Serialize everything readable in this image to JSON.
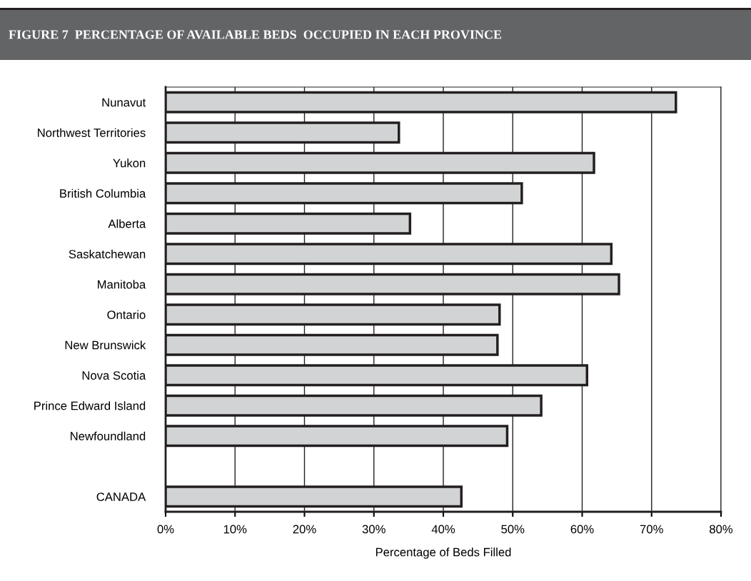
{
  "chart_data": {
    "type": "bar",
    "orientation": "horizontal",
    "title": "FIGURE 7  PERCENTAGE OF AVAILABLE BEDS  OCCUPIED IN EACH PROVINCE",
    "xlabel": "Percentage of Beds Filled",
    "categories": [
      "Nunavut",
      "Northwest Territories",
      "Yukon",
      "British Columbia",
      "Alberta",
      "Saskatchewan",
      "Manitoba",
      "Ontario",
      "New Brunswick",
      "Nova Scotia",
      "Prince Edward Island",
      "Newfoundland",
      null,
      "CANADA"
    ],
    "values": [
      73.5,
      33.6,
      61.7,
      51.3,
      35.2,
      64.2,
      65.3,
      48.1,
      47.8,
      60.7,
      54.1,
      49.2,
      null,
      42.6
    ],
    "color": "#d1d3d4",
    "xlim": [
      0,
      80
    ],
    "xticks": [
      {
        "value": 0,
        "label": "0%"
      },
      {
        "value": 10,
        "label": "10%"
      },
      {
        "value": 20,
        "label": "20%"
      },
      {
        "value": 30,
        "label": "30%"
      },
      {
        "value": 40,
        "label": "40%"
      },
      {
        "value": 50,
        "label": "50%"
      },
      {
        "value": 60,
        "label": "60%"
      },
      {
        "value": 70,
        "label": "70%"
      },
      {
        "value": 80,
        "label": "80%"
      }
    ],
    "grid": "x",
    "legend": false
  }
}
